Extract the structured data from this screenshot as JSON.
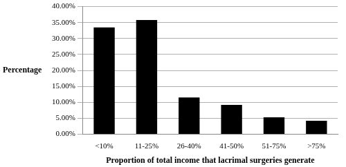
{
  "chart_data": {
    "type": "bar",
    "x_label": "Proportion of total income that lacrimal surgeries generate",
    "y_label": "Percentage",
    "categories": [
      "<10%",
      "11-25%",
      "26-40%",
      "41-50%",
      "51-75%",
      ">75%"
    ],
    "values": [
      33.5,
      35.8,
      11.5,
      9.2,
      5.3,
      4.2
    ],
    "color": "#000000",
    "ylim": [
      0,
      40
    ],
    "yticks": [
      {
        "value": 0,
        "label": "0.00%"
      },
      {
        "value": 5,
        "label": "5.00%"
      },
      {
        "value": 10,
        "label": "10.00%"
      },
      {
        "value": 15,
        "label": "15.00%"
      },
      {
        "value": 20,
        "label": "20.00%"
      },
      {
        "value": 25,
        "label": "25.00%"
      },
      {
        "value": 30,
        "label": "30.00%"
      },
      {
        "value": 35,
        "label": "35.00%"
      },
      {
        "value": 40,
        "label": "40.00%"
      }
    ],
    "grid": true
  }
}
